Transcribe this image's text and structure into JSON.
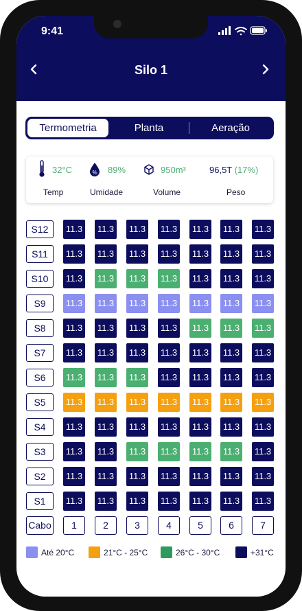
{
  "status_bar": {
    "time": "9:41"
  },
  "header": {
    "title": "Silo 1",
    "prev_icon": "chevron-left-icon",
    "next_icon": "chevron-right-icon"
  },
  "tabs": [
    {
      "label": "Termometria",
      "active": true
    },
    {
      "label": "Planta",
      "active": false
    },
    {
      "label": "Aeração",
      "active": false
    }
  ],
  "stats": {
    "temp": {
      "value": "32°C",
      "label": "Temp",
      "icon": "thermometer-icon"
    },
    "humidity": {
      "value": "89%",
      "label": "Umidade",
      "icon": "humidity-drop-icon"
    },
    "volume": {
      "value": "950m³",
      "label": "Volume",
      "icon": "cube-icon"
    },
    "weight": {
      "value": "96,5T",
      "percent": "(17%)",
      "label": "Peso"
    }
  },
  "colors": {
    "dark": "#0d0d5e",
    "lavender": "#8b8ff0",
    "green": "#4caf72",
    "orange": "#f5a011",
    "value_green": "#4caf72",
    "legend_green": "#2e9a5c"
  },
  "grid": {
    "cable_header": "Cabo",
    "cables": [
      "1",
      "2",
      "3",
      "4",
      "5",
      "6",
      "7"
    ],
    "rows": [
      {
        "sensor": "S12",
        "values": [
          "11.3",
          "11.3",
          "11.3",
          "11.3",
          "11.3",
          "11.3",
          "11.3"
        ],
        "colors": [
          "dark",
          "dark",
          "dark",
          "dark",
          "dark",
          "dark",
          "dark"
        ]
      },
      {
        "sensor": "S11",
        "values": [
          "11.3",
          "11.3",
          "11.3",
          "11.3",
          "11.3",
          "11.3",
          "11.3"
        ],
        "colors": [
          "dark",
          "dark",
          "dark",
          "dark",
          "dark",
          "dark",
          "dark"
        ]
      },
      {
        "sensor": "S10",
        "values": [
          "11.3",
          "11.3",
          "11.3",
          "11.3",
          "11.3",
          "11.3",
          "11.3"
        ],
        "colors": [
          "dark",
          "green",
          "green",
          "green",
          "dark",
          "dark",
          "dark"
        ]
      },
      {
        "sensor": "S9",
        "values": [
          "11.3",
          "11.3",
          "11.3",
          "11.3",
          "11.3",
          "11.3",
          "11.3"
        ],
        "colors": [
          "lavender",
          "lavender",
          "lavender",
          "lavender",
          "lavender",
          "lavender",
          "lavender"
        ]
      },
      {
        "sensor": "S8",
        "values": [
          "11.3",
          "11.3",
          "11.3",
          "11.3",
          "11.3",
          "11.3",
          "11.3"
        ],
        "colors": [
          "dark",
          "dark",
          "dark",
          "dark",
          "green",
          "green",
          "green"
        ]
      },
      {
        "sensor": "S7",
        "values": [
          "11.3",
          "11.3",
          "11.3",
          "11.3",
          "11.3",
          "11.3",
          "11.3"
        ],
        "colors": [
          "dark",
          "dark",
          "dark",
          "dark",
          "dark",
          "dark",
          "dark"
        ]
      },
      {
        "sensor": "S6",
        "values": [
          "11.3",
          "11.3",
          "11.3",
          "11.3",
          "11.3",
          "11.3",
          "11.3"
        ],
        "colors": [
          "green",
          "green",
          "green",
          "dark",
          "dark",
          "dark",
          "dark"
        ]
      },
      {
        "sensor": "S5",
        "values": [
          "11.3",
          "11.3",
          "11.3",
          "11.3",
          "11.3",
          "11.3",
          "11.3"
        ],
        "colors": [
          "orange",
          "orange",
          "orange",
          "orange",
          "orange",
          "orange",
          "orange"
        ]
      },
      {
        "sensor": "S4",
        "values": [
          "11.3",
          "11.3",
          "11.3",
          "11.3",
          "11.3",
          "11.3",
          "11.3"
        ],
        "colors": [
          "dark",
          "dark",
          "dark",
          "dark",
          "dark",
          "dark",
          "dark"
        ]
      },
      {
        "sensor": "S3",
        "values": [
          "11.3",
          "11.3",
          "11.3",
          "11.3",
          "11.3",
          "11.3",
          "11.3"
        ],
        "colors": [
          "dark",
          "dark",
          "green",
          "green",
          "green",
          "green",
          "dark"
        ]
      },
      {
        "sensor": "S2",
        "values": [
          "11.3",
          "11.3",
          "11.3",
          "11.3",
          "11.3",
          "11.3",
          "11.3"
        ],
        "colors": [
          "dark",
          "dark",
          "dark",
          "dark",
          "dark",
          "dark",
          "dark"
        ]
      },
      {
        "sensor": "S1",
        "values": [
          "11.3",
          "11.3",
          "11.3",
          "11.3",
          "11.3",
          "11.3",
          "11.3"
        ],
        "colors": [
          "dark",
          "dark",
          "dark",
          "dark",
          "dark",
          "dark",
          "dark"
        ]
      }
    ]
  },
  "legend": [
    {
      "label": "Até 20°C",
      "color": "#8b8ff0"
    },
    {
      "label": "21°C - 25°C",
      "color": "#f5a011"
    },
    {
      "label": "26°C - 30°C",
      "color": "#2e9a5c"
    },
    {
      "label": "+31°C",
      "color": "#0d0d5e"
    }
  ]
}
